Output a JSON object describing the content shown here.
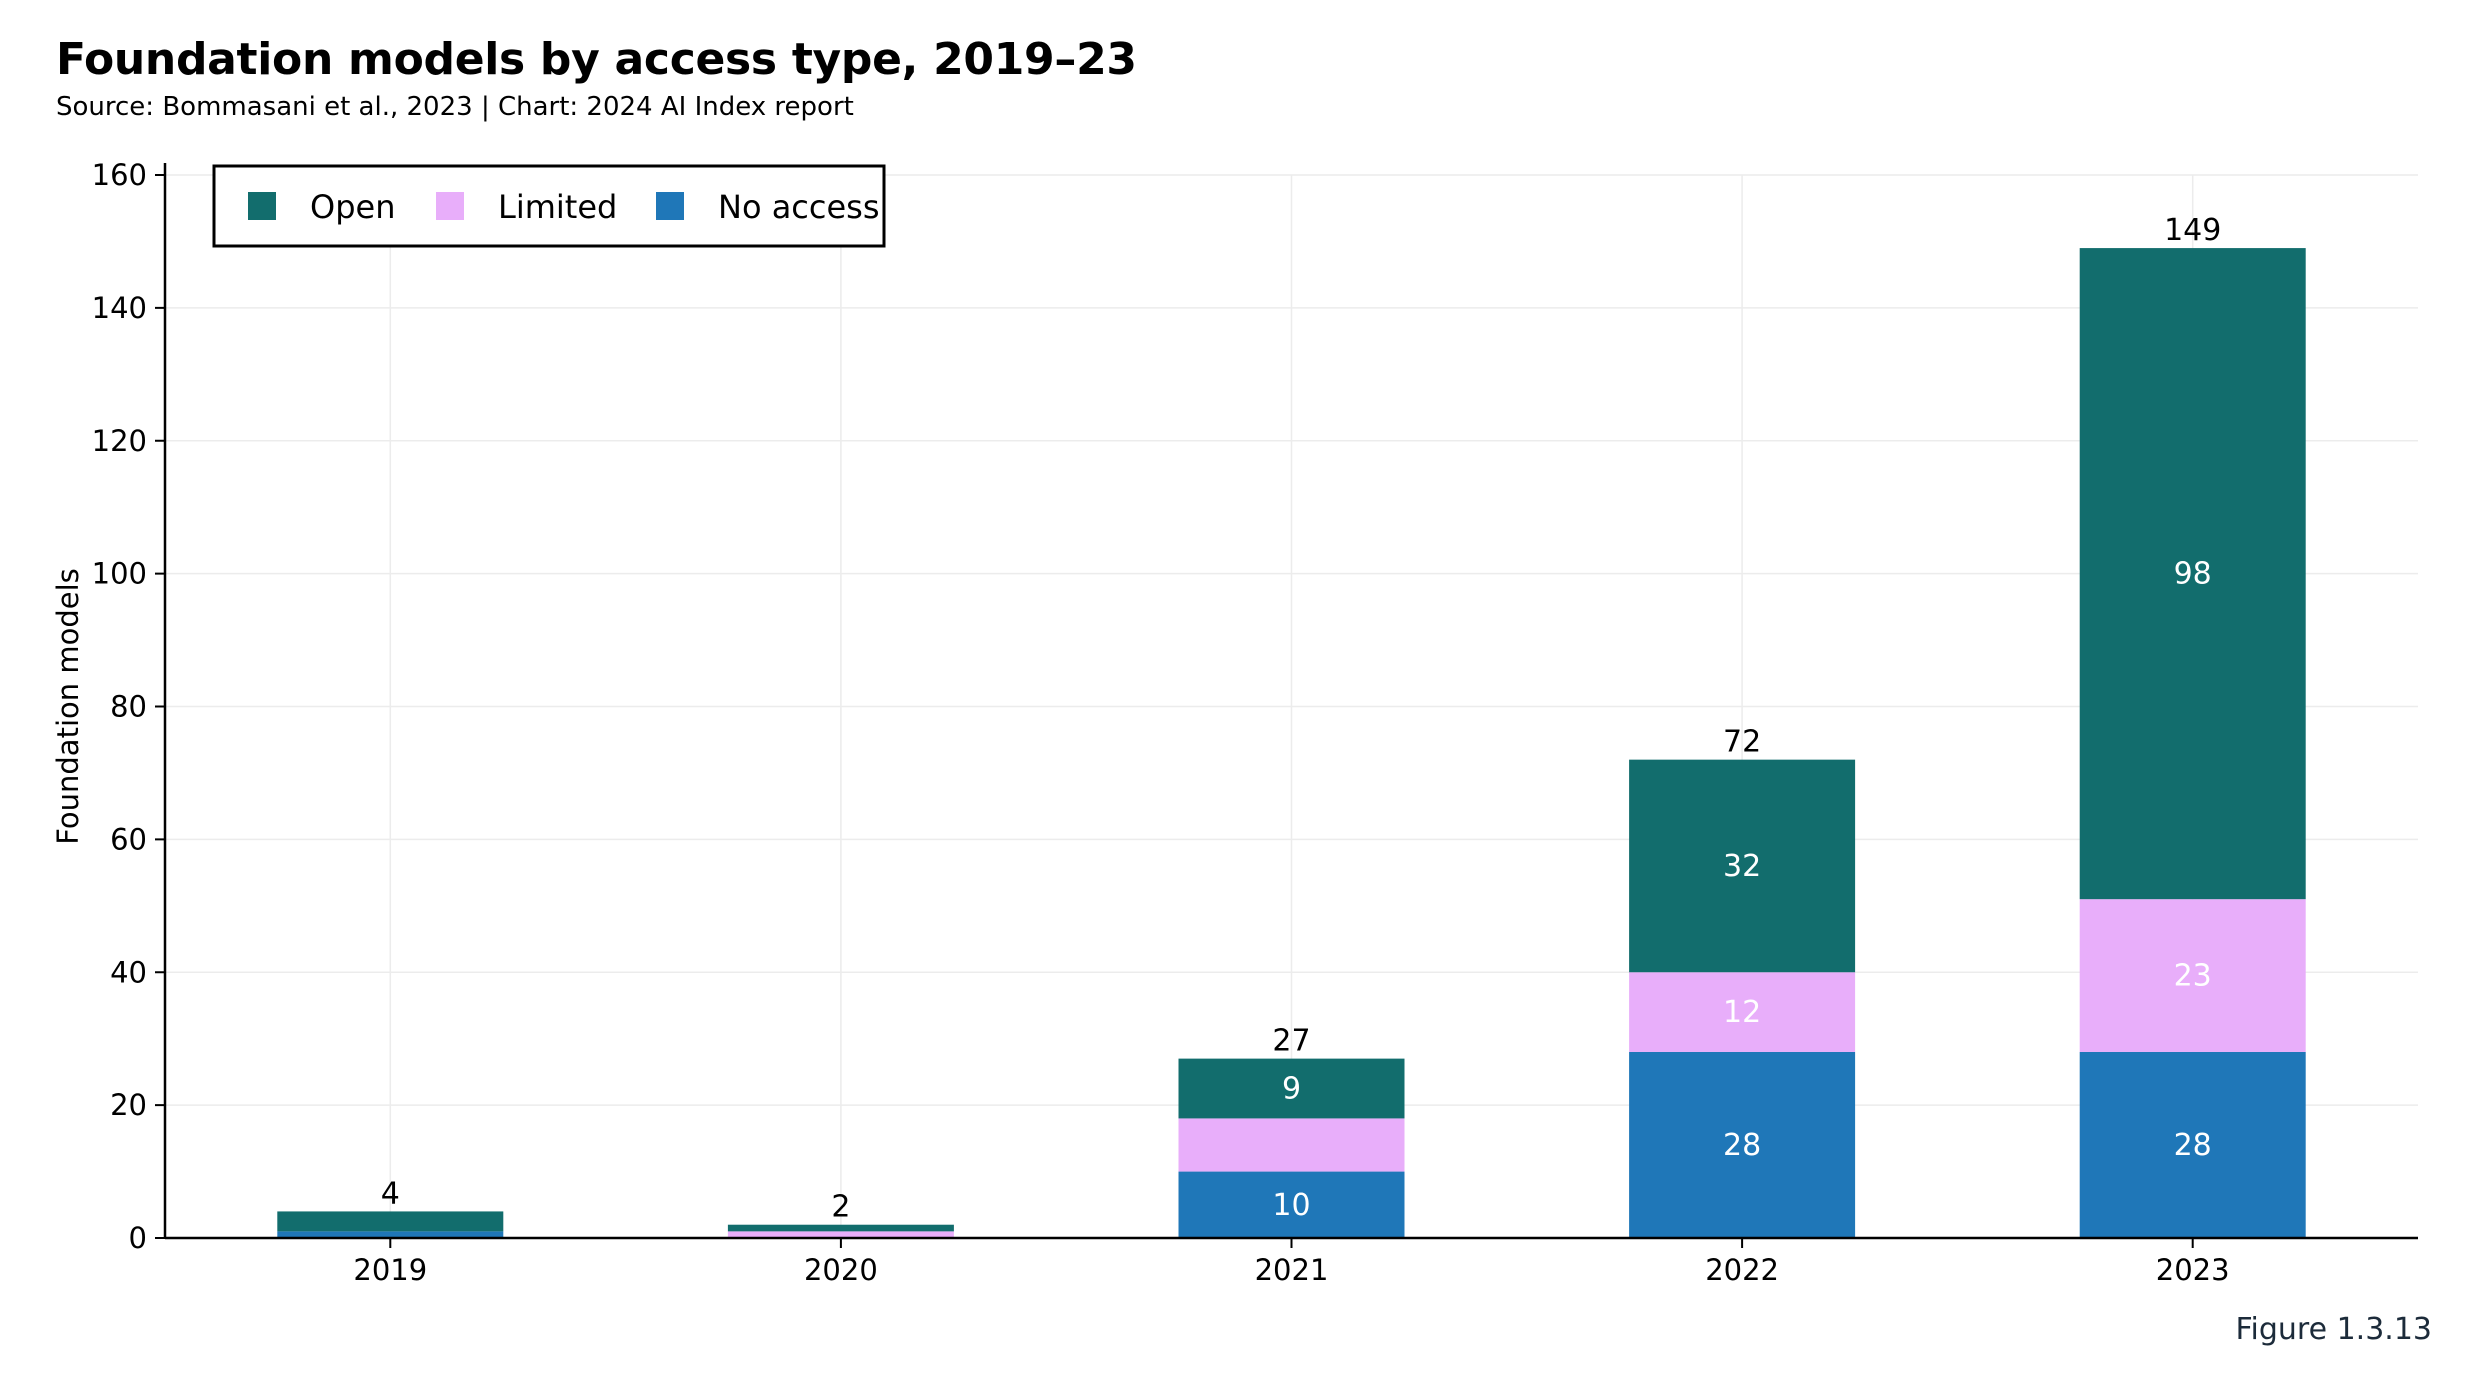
{
  "header": {
    "title": "Foundation models by access type, 2019–23",
    "subtitle": "Source: Bommasani et al., 2023 | Chart: 2024 AI Index report"
  },
  "footer": {
    "figure_label": "Figure 1.3.13"
  },
  "chart_data": {
    "type": "bar",
    "stacked": true,
    "categories": [
      "2019",
      "2020",
      "2021",
      "2022",
      "2023"
    ],
    "series": [
      {
        "name": "No access",
        "color": "#1f77b8",
        "values": [
          1,
          0,
          10,
          28,
          28
        ]
      },
      {
        "name": "Limited",
        "color": "#e8aefa",
        "values": [
          0,
          1,
          8,
          12,
          23
        ]
      },
      {
        "name": "Open",
        "color": "#126d6d",
        "values": [
          3,
          1,
          9,
          32,
          98
        ]
      }
    ],
    "segment_labels": [
      [
        "",
        "",
        "10",
        "28",
        "28"
      ],
      [
        "",
        "",
        "",
        "12",
        "23"
      ],
      [
        "",
        "",
        "9",
        "32",
        "98"
      ]
    ],
    "totals": [
      4,
      2,
      27,
      72,
      149
    ],
    "legend_order": [
      "Open",
      "Limited",
      "No access"
    ],
    "legend_position": "top-left",
    "xlabel": "",
    "ylabel": "Foundation models",
    "ylim": [
      0,
      160
    ],
    "yticks": [
      0,
      20,
      40,
      60,
      80,
      100,
      120,
      140,
      160
    ],
    "grid": true
  }
}
